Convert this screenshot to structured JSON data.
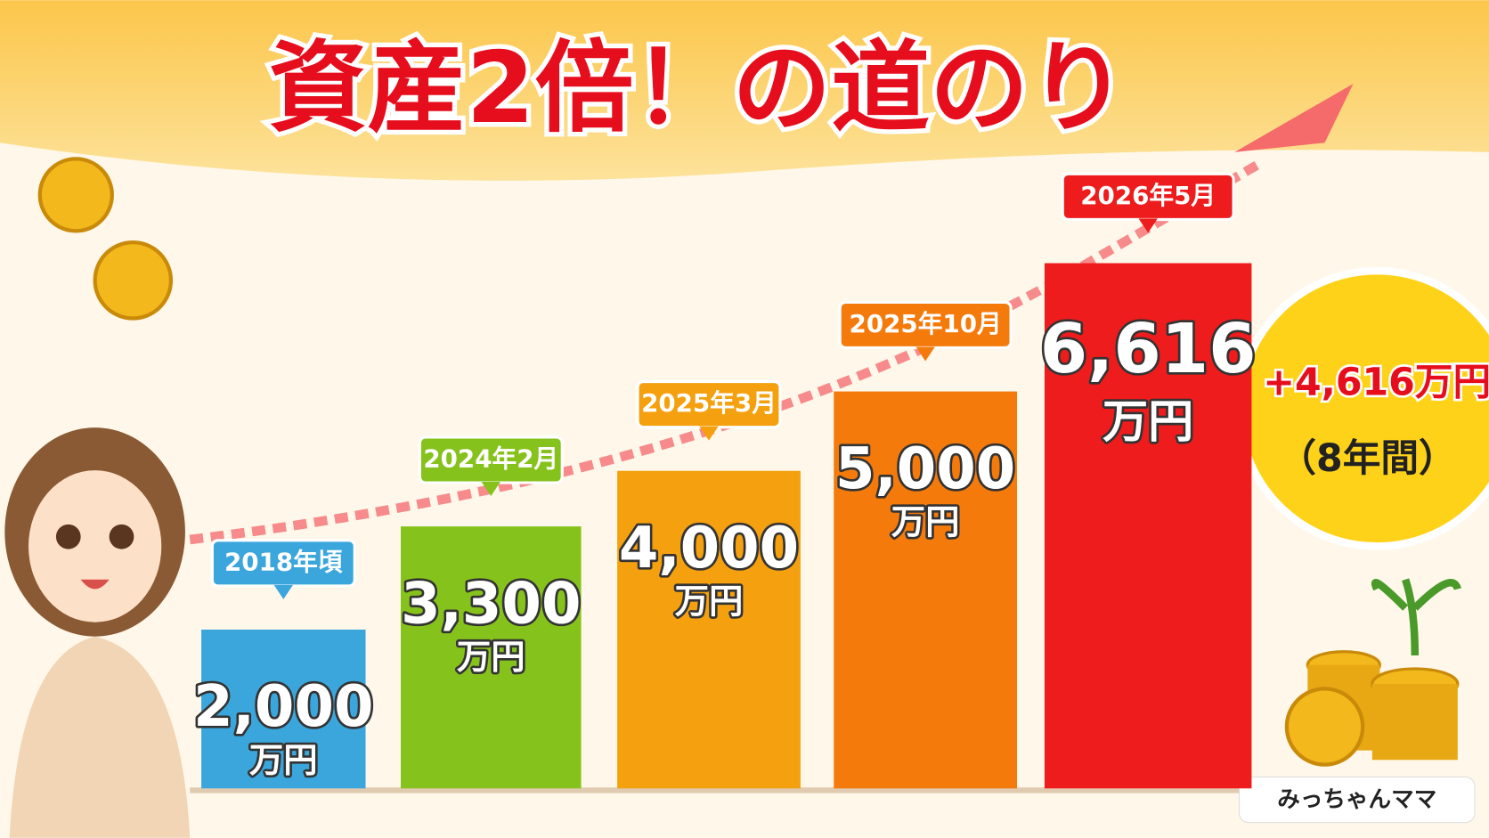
{
  "chart_data": {
    "type": "bar",
    "title": "資産2倍！の道のり",
    "categories": [
      "2018年頃",
      "2024年2月",
      "2025年3月",
      "2025年10月",
      "2026年5月"
    ],
    "values": [
      2000,
      3300,
      4000,
      5000,
      6616
    ],
    "value_labels": [
      "2,000",
      "3,300",
      "4,000",
      "5,000",
      "6,616"
    ],
    "unit": "万円",
    "colors": [
      "#3aa6dc",
      "#86c21c",
      "#f5a00f",
      "#f57a0c",
      "#ee1c1c"
    ],
    "badge": {
      "gain": "+4,616万円",
      "period": "（8年間）"
    },
    "author": "みっちゃんママ"
  }
}
